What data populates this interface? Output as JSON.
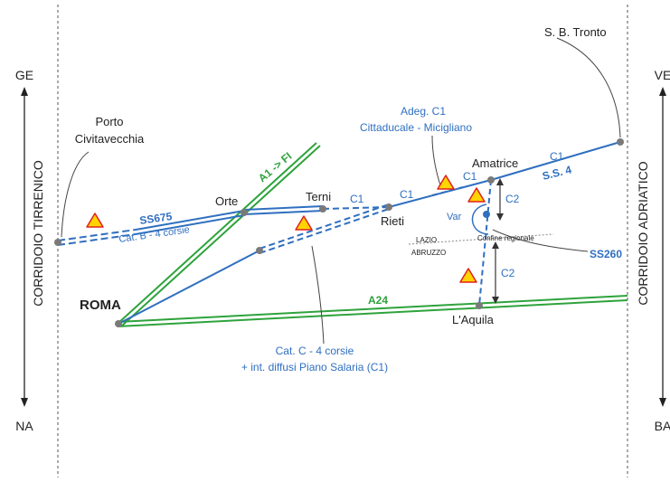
{
  "corridors": {
    "left": {
      "name": "CORRIDOIO TIRRENICO",
      "top": "GE",
      "bottom": "NA"
    },
    "right": {
      "name": "CORRIDOIO ADRIATICO",
      "top": "VE",
      "bottom": "BA"
    }
  },
  "cities": {
    "roma": "ROMA",
    "orte": "Orte",
    "terni": "Terni",
    "rieti": "Rieti",
    "amatrice": "Amatrice",
    "laquila": "L'Aquila",
    "sbtronto": "S. B. Tronto",
    "porto_line1": "Porto",
    "porto_line2": "Civitavecchia"
  },
  "roads": {
    "a1": "A1 -> FI",
    "a24": "A24",
    "ss675": "SS675",
    "ss675_cat": "Cat. B - 4 corsie",
    "ss4": "S.S. 4",
    "ss260": "SS260",
    "c1": "C1",
    "c2": "C2",
    "var": "Var"
  },
  "notes": {
    "adeg_line1": "Adeg. C1",
    "adeg_line2": "Cittaducale - Micigliano",
    "catc_line1": "Cat. C - 4 corsie",
    "catc_line2": "+ int. diffusi Piano Salaria (C1)"
  },
  "border": {
    "lazio": "LAZIO",
    "abruzzo": "ABRUZZO",
    "confine": "Confine regionale"
  },
  "colors": {
    "blue": "#2f6fc0",
    "green": "#2ea33c",
    "warning_fill": "#ffd400",
    "warning_stroke": "#e02020",
    "node": "#7a7a7a"
  }
}
